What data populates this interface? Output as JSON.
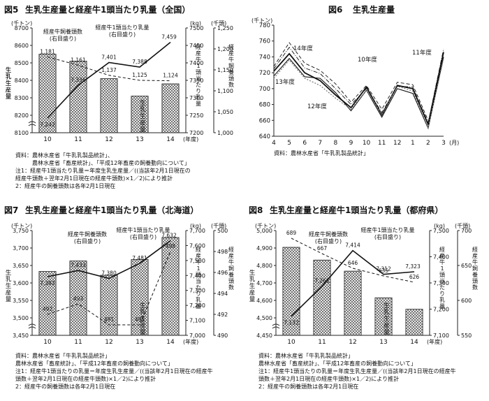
{
  "chart_data": [
    {
      "type": "bar",
      "fig_no": "図5",
      "title": "生乳生産量と経産牛1頭当たり乳量（全国）",
      "categories": [
        "10",
        "11",
        "12",
        "13",
        "14"
      ],
      "x_unit": "(年度)",
      "left_unit": "(千トン)",
      "right_unit_kg": "(kg)",
      "right_unit_cows": "(千頭)",
      "left_axis": {
        "min": 8100,
        "max": 8700,
        "ticks": [
          "8100",
          "8200",
          "8300",
          "8400",
          "8500",
          "8600",
          "8700"
        ]
      },
      "kg_axis": {
        "min": 7200,
        "max": 7500,
        "ticks": [
          "7200",
          "7250",
          "7300",
          "7350",
          "7400",
          "7450",
          "7500"
        ]
      },
      "cows_axis": {
        "min": 1000,
        "max": 1250,
        "ticks": [
          "1,000",
          "1,050",
          "1,100",
          "1,150",
          "1,200",
          "1,250"
        ]
      },
      "series": [
        {
          "name": "生乳生産量",
          "values": [
            8550,
            8510,
            8410,
            8310,
            8380
          ]
        },
        {
          "name": "経産牛1頭当たり乳量",
          "values": [
            7242,
            7336,
            7401,
            7388,
            7459
          ],
          "labels": [
            "7,242",
            "7,336",
            "7,401",
            "7,388",
            "7,459"
          ]
        },
        {
          "name": "経産牛飼養頭数",
          "values": [
            1181,
            1161,
            1137,
            1125,
            1124
          ],
          "labels": [
            "1,181",
            "1,161",
            "1,137",
            "1,125",
            "1,124"
          ]
        }
      ],
      "annotations": [
        "経産牛飼養頭数",
        "(右目盛り)",
        "経産牛1頭当たり乳量",
        "(右目盛り)",
        "生乳生産量",
        "生乳生産量",
        "経産牛1頭当たり乳量",
        "経産牛飼養頭数"
      ],
      "notes": [
        "資料：農林水産省「牛乳乳製品統計」、",
        "農林水産省「畜産統計」、「平成12年畜産の飼養動向について」",
        "注1：経産牛1頭当たり乳量＝年度生乳生産量／((当該年2月1日現在の",
        "経産牛頭数＋翌年2月1日現在の経産牛頭数)×1／2)により推計",
        "2：経産牛の飼養頭数は各年2月1日現在"
      ]
    },
    {
      "type": "line",
      "fig_no": "図6",
      "title": "生乳生産量",
      "categories": [
        "4",
        "5",
        "6",
        "7",
        "8",
        "9",
        "10",
        "11",
        "12",
        "1",
        "2",
        "3"
      ],
      "x_unit": "(月)",
      "y_unit": "(千トン)",
      "ylim": [
        640,
        780
      ],
      "yticks": [
        "640",
        "660",
        "680",
        "700",
        "720",
        "740",
        "760",
        "780"
      ],
      "series": [
        {
          "name": "13年度",
          "values": [
            716,
            738,
            715,
            713,
            695,
            672,
            698,
            664,
            700,
            694,
            650,
            740
          ]
        },
        {
          "name": "14年度",
          "values": [
            722,
            744,
            720,
            710,
            692,
            676,
            702,
            667,
            704,
            700,
            655,
            746
          ]
        },
        {
          "name": "12年度",
          "values": [
            713,
            736,
            713,
            704,
            688,
            674,
            698,
            668,
            703,
            697,
            651,
            738
          ]
        },
        {
          "name": "10年度",
          "values": [
            728,
            758,
            732,
            723,
            706,
            683,
            704,
            674,
            708,
            705,
            660,
            null
          ]
        },
        {
          "name": "11年度",
          "values": [
            725,
            752,
            726,
            719,
            700,
            680,
            700,
            670,
            703,
            702,
            657,
            750
          ]
        }
      ],
      "notes": [
        "資料：農林水産省「牛乳乳製品統計」"
      ]
    },
    {
      "type": "bar",
      "fig_no": "図7",
      "title": "生乳生産量と経産牛1頭当たり乳量（北海道）",
      "categories": [
        "10",
        "11",
        "12",
        "13",
        "14"
      ],
      "x_unit": "(年度)",
      "left_unit": "(千トン)",
      "right_unit_kg": "(kg)",
      "right_unit_cows": "(千頭)",
      "left_axis": {
        "min": 3450,
        "max": 3750,
        "ticks": [
          "3,450",
          "3,500",
          "3,550",
          "3,600",
          "3,650",
          "3,700",
          "3,750"
        ]
      },
      "kg_axis": {
        "min": 7000,
        "max": 7700,
        "ticks": [
          "7,000",
          "7,100",
          "7,200",
          "7,300",
          "7,400",
          "7,500",
          "7,600",
          "7,700"
        ]
      },
      "cows_axis": {
        "min": 490,
        "max": 500,
        "ticks": [
          "490",
          "492",
          "494",
          "496",
          "498",
          "500"
        ]
      },
      "series": [
        {
          "name": "生乳生産量",
          "values": [
            3633,
            3663,
            3622,
            3667,
            3730
          ]
        },
        {
          "name": "経産牛1頭当たり乳量",
          "values": [
            7392,
            7433,
            7380,
            7481,
            7632
          ],
          "labels": [
            "7,392",
            "7,433",
            "7,380",
            "7,481",
            "7,632"
          ]
        },
        {
          "name": "経産牛飼養頭数",
          "values": [
            492,
            493,
            491,
            491,
            498
          ],
          "labels": [
            "492",
            "493",
            "491",
            "491",
            "498"
          ]
        }
      ],
      "annotations": [
        "経産牛飼養頭数",
        "(右目盛り)",
        "経産牛1頭当たり乳量",
        "(右目盛り)",
        "生乳生産量",
        "経産牛1頭当たり乳量",
        "経産牛飼養頭数"
      ],
      "notes": [
        "資料：農林水産省「牛乳乳製品統計」",
        "農林水産省「畜産統計」、「平成12年畜産の飼養動向について」",
        "注1：経産牛1頭当たりの乳量＝年度生乳生産量／((当該年2月1日現在の経産牛",
        "頭数＋翌年2月1日現在の経産牛頭数)×1／2)により推計",
        "2：経産牛の飼養頭数は各年2月1日現在"
      ]
    },
    {
      "type": "bar",
      "fig_no": "図8",
      "title": "生乳生産量と経産牛1頭当たり乳量（都府県）",
      "categories": [
        "10",
        "11",
        "12",
        "13",
        "14"
      ],
      "x_unit": "(年度)",
      "left_unit": "(千トン)",
      "right_unit_kg": "(kg)",
      "right_unit_cows": "(千頭)",
      "left_axis": {
        "min": 4450,
        "max": 5000,
        "ticks": [
          "4,450",
          "4,500",
          "4,600",
          "4,700",
          "4,800",
          "4,900",
          "5,000"
        ]
      },
      "kg_axis": {
        "min": 7050,
        "max": 7500,
        "ticks": [
          "7,100",
          "7,200",
          "7,300",
          "7,400",
          "7,500"
        ]
      },
      "cows_axis": {
        "min": 550,
        "max": 700,
        "ticks": [
          "550",
          "600",
          "650",
          "700"
        ]
      },
      "series": [
        {
          "name": "生乳生産量",
          "values": [
            4912,
            4845,
            4787,
            4647,
            4587
          ]
        },
        {
          "name": "経産牛1頭当たり乳量",
          "values": [
            7132,
            7261,
            7414,
            7312,
            7323
          ],
          "labels": [
            "7,132",
            "7,261",
            "7,414",
            "7,312",
            "7,323"
          ]
        },
        {
          "name": "経産牛飼養頭数",
          "values": [
            689,
            667,
            646,
            635,
            626
          ],
          "labels": [
            "689",
            "667",
            "646",
            "635",
            "626"
          ]
        }
      ],
      "annotations": [
        "経産牛飼養頭数",
        "(右目盛り)",
        "経産牛1頭当たり乳量",
        "(右目盛り)",
        "生乳生産量",
        "経産牛1頭当たり乳量",
        "経産牛飼養頭数"
      ],
      "notes": [
        "資料：農林水産省「牛乳乳製品統計」",
        "農林水産省「畜産統計」、「平成12年畜産の飼養動向について」",
        "注1：経産牛1頭当たりの乳量＝年度生乳生産量／((当該年2月1日現在の経産牛",
        "頭数＋翌年2月1日現在の経産牛頭数)×1／2)により推計",
        "2：経産牛の飼養頭数は各年2月1日現在"
      ]
    }
  ]
}
